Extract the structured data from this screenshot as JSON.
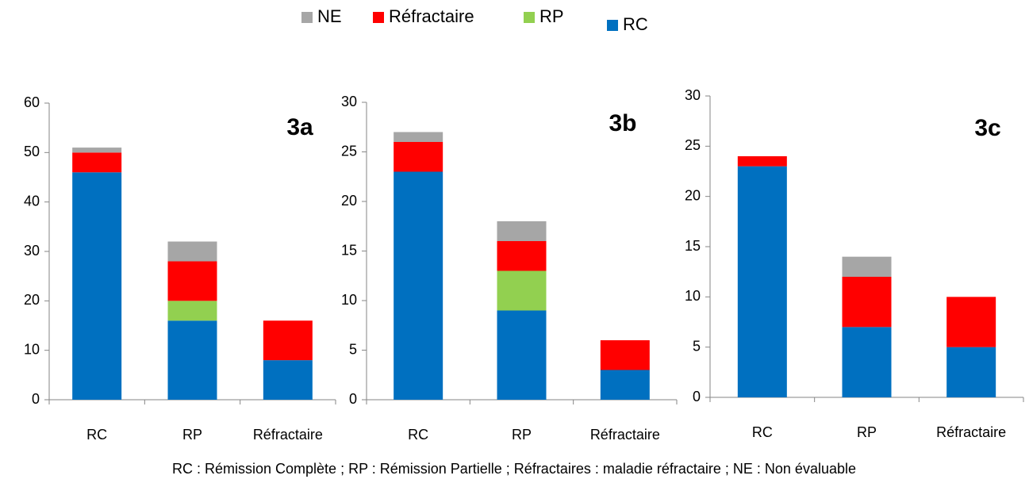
{
  "legend_order": [
    3,
    2,
    1,
    0
  ],
  "footnote": "RC : Rémission Complète ; RP : Rémission Partielle ; Réfractaires : maladie réfractaire ; NE : Non évaluable",
  "chart_data": [
    {
      "type": "bar",
      "stacked": true,
      "title": "3a",
      "categories": [
        "RC",
        "RP",
        "Réfractaire"
      ],
      "series": [
        {
          "name": "RC",
          "color": "#0070c0",
          "values": [
            46,
            16,
            8
          ]
        },
        {
          "name": "RP",
          "color": "#92d050",
          "values": [
            0,
            4,
            0
          ]
        },
        {
          "name": "Réfractaire",
          "color": "#ff0000",
          "values": [
            4,
            8,
            8
          ]
        },
        {
          "name": "NE",
          "color": "#a6a6a6",
          "values": [
            1,
            4,
            0
          ]
        }
      ],
      "ylim": [
        0,
        60
      ],
      "yticks": [
        0,
        10,
        20,
        30,
        40,
        50,
        60
      ]
    },
    {
      "type": "bar",
      "stacked": true,
      "title": "3b",
      "categories": [
        "RC",
        "RP",
        "Réfractaire"
      ],
      "series": [
        {
          "name": "RC",
          "color": "#0070c0",
          "values": [
            23,
            9,
            3
          ]
        },
        {
          "name": "RP",
          "color": "#92d050",
          "values": [
            0,
            4,
            0
          ]
        },
        {
          "name": "Réfractaire",
          "color": "#ff0000",
          "values": [
            3,
            3,
            3
          ]
        },
        {
          "name": "NE",
          "color": "#a6a6a6",
          "values": [
            1,
            2,
            0
          ]
        }
      ],
      "ylim": [
        0,
        30
      ],
      "yticks": [
        0,
        5,
        10,
        15,
        20,
        25,
        30
      ]
    },
    {
      "type": "bar",
      "stacked": true,
      "title": "3c",
      "categories": [
        "RC",
        "RP",
        "Réfractaire"
      ],
      "series": [
        {
          "name": "RC",
          "color": "#0070c0",
          "values": [
            23,
            7,
            5
          ]
        },
        {
          "name": "RP",
          "color": "#92d050",
          "values": [
            0,
            0,
            0
          ]
        },
        {
          "name": "Réfractaire",
          "color": "#ff0000",
          "values": [
            1,
            5,
            5
          ]
        },
        {
          "name": "NE",
          "color": "#a6a6a6",
          "values": [
            0,
            2,
            0
          ]
        }
      ],
      "ylim": [
        0,
        30
      ],
      "yticks": [
        0,
        5,
        10,
        15,
        20,
        25,
        30
      ]
    }
  ]
}
